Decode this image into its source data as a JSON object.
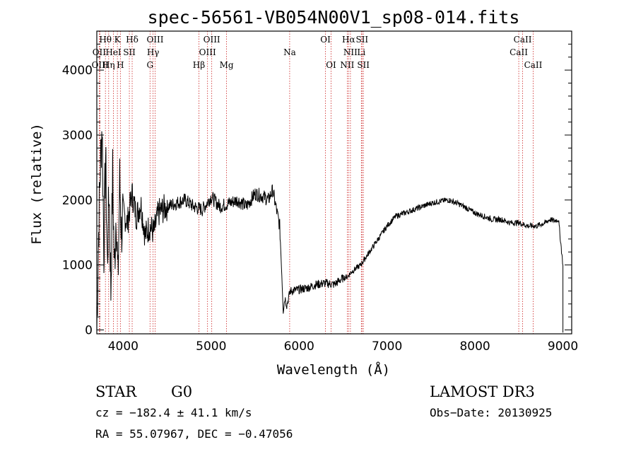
{
  "chart_data": {
    "type": "line",
    "title": "spec-56561-VB054N00V1_sp08-014.fits",
    "xlabel": "Wavelength (Å)",
    "ylabel": "Flux (relative)",
    "xlim": [
      3700,
      9100
    ],
    "ylim": [
      -60,
      4600
    ],
    "x_ticks": [
      4000,
      5000,
      6000,
      7000,
      8000,
      9000
    ],
    "x_tick_labels": [
      "4000",
      "5000",
      "6000",
      "7000",
      "8000",
      "9000"
    ],
    "y_ticks": [
      0,
      1000,
      2000,
      3000,
      4000
    ],
    "y_tick_labels": [
      "0",
      "1000",
      "2000",
      "3000",
      "4000"
    ],
    "series": [
      {
        "name": "flux",
        "color": "#000000",
        "x": [
          3700,
          3720,
          3740,
          3760,
          3780,
          3800,
          3820,
          3840,
          3860,
          3880,
          3900,
          3920,
          3940,
          3960,
          3980,
          4000,
          4050,
          4100,
          4150,
          4200,
          4250,
          4300,
          4350,
          4400,
          4500,
          4600,
          4700,
          4800,
          4900,
          5000,
          5100,
          5200,
          5300,
          5400,
          5500,
          5600,
          5650,
          5700,
          5750,
          5780,
          5800,
          5820,
          5840,
          5860,
          5900,
          6000,
          6100,
          6200,
          6300,
          6400,
          6450,
          6500,
          6550,
          6600,
          6650,
          6700,
          6750,
          6800,
          6900,
          7000,
          7100,
          7200,
          7300,
          7400,
          7500,
          7600,
          7700,
          7800,
          7900,
          8000,
          8100,
          8200,
          8300,
          8400,
          8500,
          8600,
          8700,
          8800,
          8850,
          8900,
          8950,
          9000
        ],
        "y": [
          0,
          1500,
          2500,
          3200,
          1200,
          2700,
          1000,
          2200,
          600,
          2400,
          900,
          1900,
          700,
          2300,
          1500,
          1800,
          1650,
          2100,
          1750,
          1950,
          1450,
          1600,
          1500,
          1800,
          1900,
          1950,
          2000,
          1900,
          1850,
          2050,
          1900,
          1950,
          2000,
          1900,
          2100,
          2050,
          2000,
          2150,
          1800,
          1600,
          1000,
          300,
          500,
          380,
          600,
          620,
          650,
          700,
          720,
          700,
          750,
          800,
          820,
          900,
          950,
          1000,
          1100,
          1200,
          1400,
          1600,
          1750,
          1800,
          1850,
          1900,
          1950,
          1980,
          2000,
          1950,
          1880,
          1800,
          1750,
          1700,
          1700,
          1650,
          1650,
          1600,
          1600,
          1650,
          1700,
          1680,
          1700,
          1000
        ]
      }
    ],
    "lines": [
      {
        "label": "Hθ",
        "wave": 3798,
        "row": 0
      },
      {
        "label": "K",
        "wave": 3934,
        "row": 0
      },
      {
        "label": "Hδ",
        "wave": 4102,
        "row": 0
      },
      {
        "label": "OIII",
        "wave": 4363,
        "row": 0
      },
      {
        "label": "OIII",
        "wave": 5007,
        "row": 0
      },
      {
        "label": "OI",
        "wave": 6300,
        "row": 0
      },
      {
        "label": "Hα",
        "wave": 6563,
        "row": 0
      },
      {
        "label": "SII",
        "wave": 6716,
        "row": 0
      },
      {
        "label": "CaII",
        "wave": 8542,
        "row": 0
      },
      {
        "label": "OII",
        "wave": 3727,
        "row": 1
      },
      {
        "label": "HeI",
        "wave": 3889,
        "row": 1
      },
      {
        "label": "SII",
        "wave": 4070,
        "row": 1
      },
      {
        "label": "Hγ",
        "wave": 4340,
        "row": 1
      },
      {
        "label": "OIII",
        "wave": 4959,
        "row": 1
      },
      {
        "label": "Na",
        "wave": 5893,
        "row": 1
      },
      {
        "label": "NII",
        "wave": 6584,
        "row": 1
      },
      {
        "label": "Li",
        "wave": 6708,
        "row": 1
      },
      {
        "label": "CaII",
        "wave": 8498,
        "row": 1
      },
      {
        "label": "OIII",
        "wave": 3737,
        "row": 2
      },
      {
        "label": "Hη",
        "wave": 3835,
        "row": 2
      },
      {
        "label": "H",
        "wave": 3968,
        "row": 2
      },
      {
        "label": "G",
        "wave": 4305,
        "row": 2
      },
      {
        "label": "Hβ",
        "wave": 4861,
        "row": 2
      },
      {
        "label": "Mg",
        "wave": 5175,
        "row": 2
      },
      {
        "label": "OI",
        "wave": 6364,
        "row": 2
      },
      {
        "label": "NII",
        "wave": 6548,
        "row": 2
      },
      {
        "label": "SII",
        "wave": 6731,
        "row": 2
      },
      {
        "label": "CaII",
        "wave": 8662,
        "row": 2
      }
    ],
    "line_color": "#cc2222"
  },
  "info": {
    "class": "STAR",
    "subclass": "G0",
    "survey": "LAMOST DR3",
    "cz": "cz = −182.4 ± 41.1 km/s",
    "obs_date": "Obs−Date: 20130925",
    "radec": "RA =  55.07967, DEC =  −0.47056"
  }
}
